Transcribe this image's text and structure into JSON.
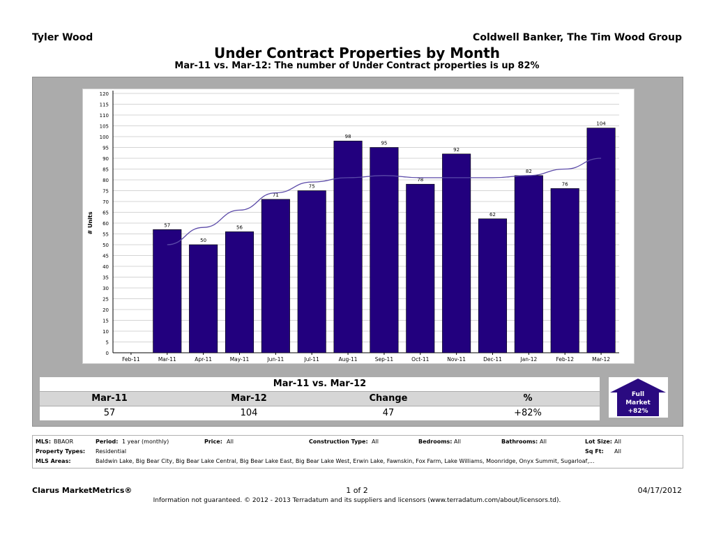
{
  "header": {
    "agent": "Tyler Wood",
    "broker": "Coldwell Banker, The Tim Wood Group",
    "title": "Under Contract Properties by Month",
    "subtitle": "Mar-11 vs. Mar-12: The number of Under Contract properties is up 82%"
  },
  "colors": {
    "bar": "#22007e",
    "trend": "#5b4aa8",
    "panel": "#ababab",
    "badge": "#2a0a80"
  },
  "chart_data": {
    "type": "bar",
    "title": "",
    "xlabel": "",
    "ylabel": "# Units",
    "ylim": [
      0,
      120
    ],
    "yticks": [
      0,
      5,
      10,
      15,
      20,
      25,
      30,
      35,
      40,
      45,
      50,
      55,
      60,
      65,
      70,
      75,
      80,
      85,
      90,
      95,
      100,
      105,
      110,
      115,
      120
    ],
    "categories": [
      "Feb-11",
      "Mar-11",
      "Apr-11",
      "May-11",
      "Jun-11",
      "Jul-11",
      "Aug-11",
      "Sep-11",
      "Oct-11",
      "Nov-11",
      "Dec-11",
      "Jan-12",
      "Feb-12",
      "Mar-12"
    ],
    "values": [
      null,
      57,
      50,
      56,
      71,
      75,
      98,
      95,
      78,
      92,
      62,
      82,
      76,
      104
    ],
    "trend": [
      null,
      50,
      58,
      66,
      74,
      79,
      81,
      82,
      81,
      81,
      81,
      82,
      85,
      90
    ],
    "grid": true,
    "legend": "none"
  },
  "comparison": {
    "title": "Mar-11 vs. Mar-12",
    "headers": [
      "Mar-11",
      "Mar-12",
      "Change",
      "%"
    ],
    "values": [
      "57",
      "104",
      "47",
      "+82%"
    ]
  },
  "badge": {
    "line1": "Full",
    "line2": "Market",
    "line3": "+82%"
  },
  "filters": {
    "mls_label": "MLS:",
    "mls_value": "BBAOR",
    "period_label": "Period:",
    "period_value": "1 year (monthly)",
    "price_label": "Price:",
    "price_value": "All",
    "construction_label": "Construction Type:",
    "construction_value": "All",
    "bedrooms_label": "Bedrooms:",
    "bedrooms_value": "All",
    "bathrooms_label": "Bathrooms:",
    "bathrooms_value": "All",
    "lotsize_label": "Lot Size:",
    "lotsize_value": "All",
    "proptype_label": "Property Types:",
    "proptype_value": "Residential",
    "sqft_label": "Sq Ft:",
    "sqft_value": "All",
    "areas_label": "MLS Areas:",
    "areas_value": "Baldwin Lake, Big Bear City, Big Bear Lake Central, Big Bear Lake East, Big Bear Lake West, Erwin Lake, Fawnskin, Fox Farm, Lake Williams, Moonridge, Onyx Summit, Sugarloaf,..."
  },
  "footer": {
    "brand": "Clarus MarketMetrics®",
    "page": "1 of 2",
    "date": "04/17/2012",
    "disclaimer": "Information not guaranteed.  © 2012 - 2013 Terradatum and its suppliers and licensors (www.terradatum.com/about/licensors.td)."
  }
}
